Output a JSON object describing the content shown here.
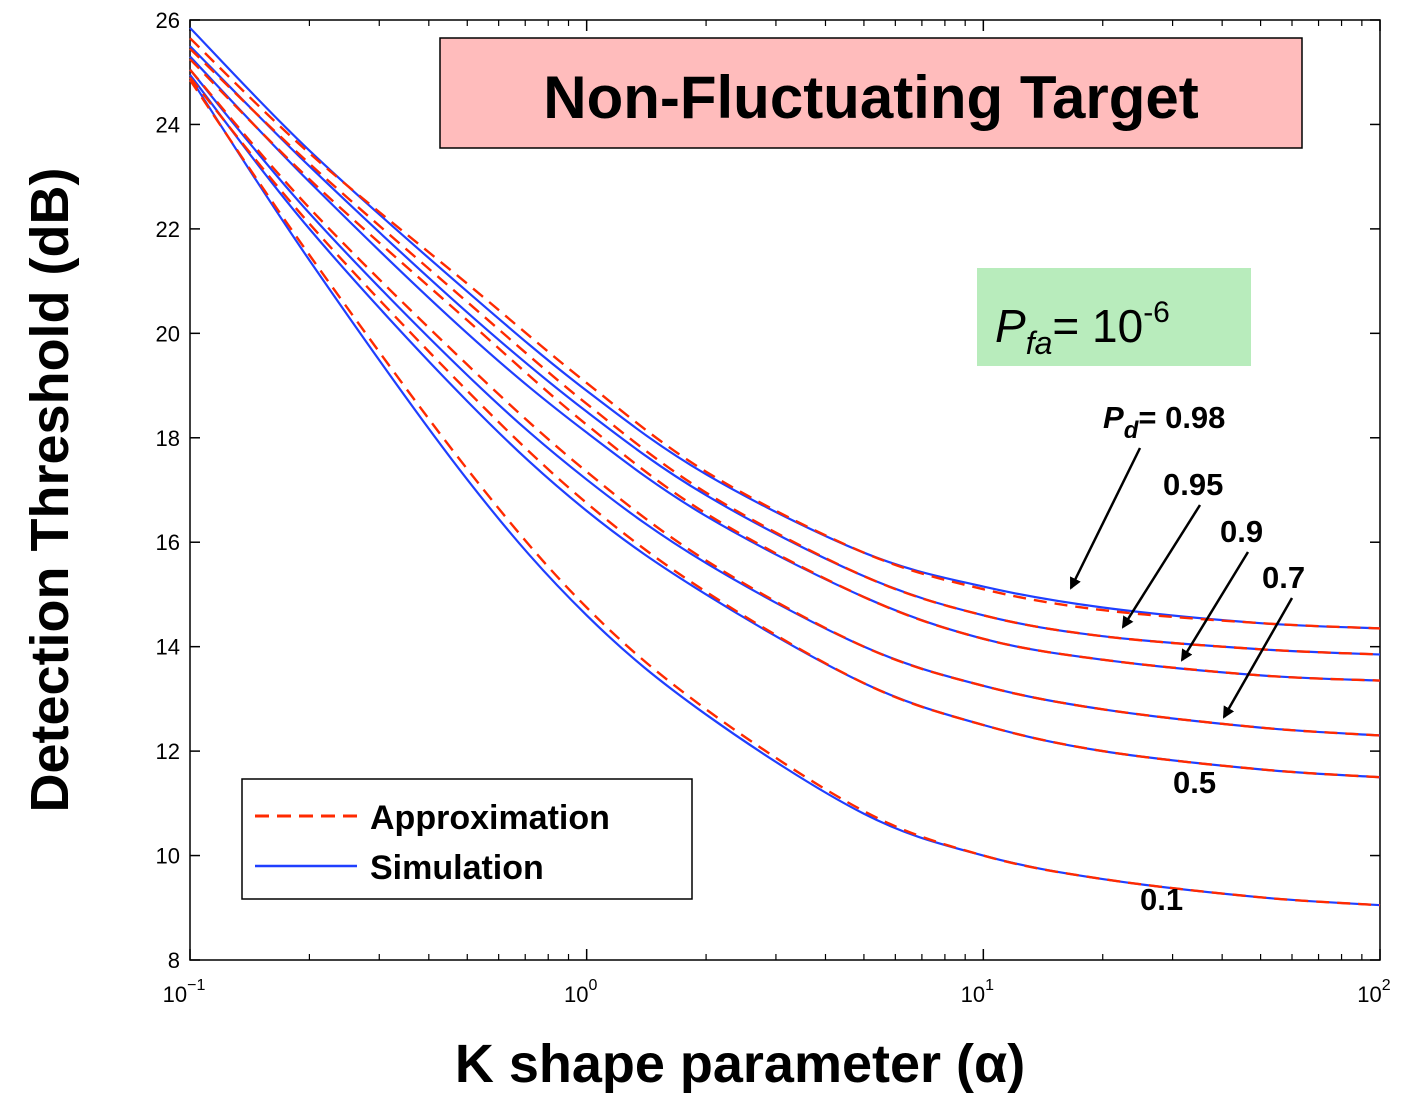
{
  "chart_data": {
    "type": "line",
    "title": "Non-Fluctuating Target",
    "annotation": {
      "pfa_symbol": "P",
      "pfa_sub": "fa",
      "pfa_eq": "= 10",
      "pfa_exp": "-6",
      "pd_symbol": "P",
      "pd_sub": "d",
      "pd_eq": "= 0.98"
    },
    "xlabel": "K shape parameter (α)",
    "ylabel": "Detection Threshold (dB)",
    "x_scale": "log",
    "xlim": [
      0.1,
      100
    ],
    "ylim": [
      8,
      26
    ],
    "x_ticks": [
      {
        "base": "10",
        "exp": "−1"
      },
      {
        "base": "10",
        "exp": "0"
      },
      {
        "base": "10",
        "exp": "1"
      },
      {
        "base": "10",
        "exp": "2"
      }
    ],
    "y_ticks": [
      "8",
      "10",
      "12",
      "14",
      "16",
      "18",
      "20",
      "22",
      "24",
      "26"
    ],
    "legend": {
      "placement": "bottom-left",
      "entries": [
        {
          "label": "Approximation",
          "style": "dashed",
          "color": "#ff2a00"
        },
        {
          "label": "Simulation",
          "style": "solid",
          "color": "#1f3fff"
        }
      ]
    },
    "series_labels": [
      "0.95",
      "0.9",
      "0.7",
      "0.5",
      "0.1"
    ],
    "series": [
      {
        "pd": 0.98,
        "x": [
          0.1,
          0.2,
          0.5,
          1,
          2,
          5,
          10,
          20,
          50,
          100
        ],
        "simulation": [
          25.85,
          23.5,
          20.8,
          18.9,
          17.3,
          15.8,
          15.15,
          14.75,
          14.45,
          14.35
        ],
        "approximation": [
          25.65,
          23.45,
          20.95,
          19.05,
          17.35,
          15.8,
          15.1,
          14.7,
          14.45,
          14.35
        ]
      },
      {
        "pd": 0.95,
        "x": [
          0.1,
          0.2,
          0.5,
          1,
          2,
          5,
          10,
          20,
          50,
          100
        ],
        "simulation": [
          25.5,
          23.2,
          20.4,
          18.5,
          16.9,
          15.35,
          14.6,
          14.2,
          13.95,
          13.85
        ],
        "approximation": [
          25.45,
          23.25,
          20.6,
          18.65,
          16.95,
          15.35,
          14.6,
          14.2,
          13.95,
          13.85
        ]
      },
      {
        "pd": 0.9,
        "x": [
          0.1,
          0.2,
          0.5,
          1,
          2,
          5,
          10,
          20,
          50,
          100
        ],
        "simulation": [
          25.3,
          22.9,
          20.0,
          18.1,
          16.5,
          14.95,
          14.15,
          13.75,
          13.45,
          13.35
        ],
        "approximation": [
          25.25,
          22.95,
          20.25,
          18.25,
          16.55,
          14.95,
          14.15,
          13.75,
          13.45,
          13.35
        ]
      },
      {
        "pd": 0.7,
        "x": [
          0.1,
          0.2,
          0.5,
          1,
          2,
          5,
          10,
          20,
          50,
          100
        ],
        "simulation": [
          25.05,
          22.3,
          19.2,
          17.2,
          15.6,
          14.0,
          13.25,
          12.8,
          12.45,
          12.3
        ],
        "approximation": [
          25.05,
          22.4,
          19.4,
          17.35,
          15.65,
          14.0,
          13.25,
          12.8,
          12.45,
          12.3
        ]
      },
      {
        "pd": 0.5,
        "x": [
          0.1,
          0.2,
          0.5,
          1,
          2,
          5,
          10,
          20,
          50,
          100
        ],
        "simulation": [
          24.95,
          22.0,
          18.7,
          16.6,
          15.0,
          13.3,
          12.5,
          12.0,
          11.65,
          11.5
        ],
        "approximation": [
          24.9,
          22.1,
          18.9,
          16.75,
          15.05,
          13.3,
          12.5,
          12.0,
          11.65,
          11.5
        ]
      },
      {
        "pd": 0.1,
        "x": [
          0.1,
          0.2,
          0.5,
          1,
          2,
          5,
          10,
          20,
          50,
          100
        ],
        "simulation": [
          24.9,
          21.4,
          17.2,
          14.6,
          12.7,
          10.8,
          10.0,
          9.55,
          9.2,
          9.05
        ],
        "approximation": [
          24.85,
          21.5,
          17.4,
          14.75,
          12.8,
          10.85,
          10.0,
          9.55,
          9.2,
          9.05
        ]
      }
    ]
  }
}
